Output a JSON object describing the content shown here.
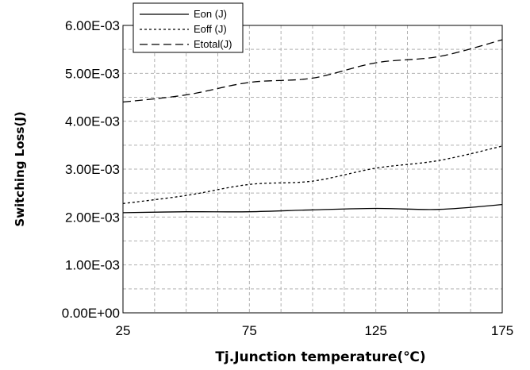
{
  "chart_data": {
    "type": "line",
    "title": "",
    "xlabel": "Tj.Junction temperature(℃)",
    "ylabel": "Switching Loss(J)",
    "x_ticks": [
      "25",
      "75",
      "125",
      "175"
    ],
    "y_ticks": [
      "0.00E+00",
      "1.00E-03",
      "2.00E-03",
      "3.00E-03",
      "4.00E-03",
      "5.00E-03",
      "6.00E-03"
    ],
    "xlim": [
      25,
      175
    ],
    "ylim": [
      0,
      0.006
    ],
    "x_minor_step": 12.5,
    "y_minor_step": 0.0005,
    "grid": "dashed minor and major gridlines",
    "legend_position": "top-left",
    "series": [
      {
        "name": "Eon (J)",
        "style": "solid",
        "x": [
          25,
          50,
          75,
          100,
          125,
          150,
          175
        ],
        "values": [
          0.00209,
          0.00211,
          0.00211,
          0.00215,
          0.00218,
          0.00216,
          0.00226
        ]
      },
      {
        "name": "Eoff (J)",
        "style": "dotted",
        "x": [
          25,
          50,
          75,
          100,
          125,
          150,
          175
        ],
        "values": [
          0.00228,
          0.00245,
          0.00268,
          0.00275,
          0.00302,
          0.00318,
          0.00348
        ]
      },
      {
        "name": "Etotal(J)",
        "style": "dashed",
        "x": [
          25,
          50,
          75,
          100,
          125,
          150,
          175
        ],
        "values": [
          0.0044,
          0.00455,
          0.00481,
          0.0049,
          0.00522,
          0.00535,
          0.0057
        ]
      }
    ],
    "colors": {
      "line": "#000000",
      "grid": "#b0b0b0",
      "background": "#ffffff"
    }
  }
}
